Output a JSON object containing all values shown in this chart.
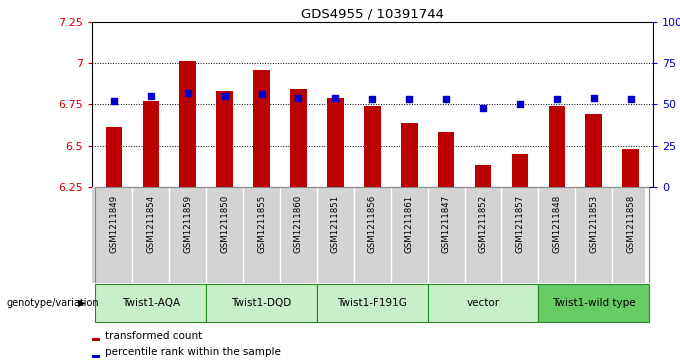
{
  "title": "GDS4955 / 10391744",
  "samples": [
    "GSM1211849",
    "GSM1211854",
    "GSM1211859",
    "GSM1211850",
    "GSM1211855",
    "GSM1211860",
    "GSM1211851",
    "GSM1211856",
    "GSM1211861",
    "GSM1211847",
    "GSM1211852",
    "GSM1211857",
    "GSM1211848",
    "GSM1211853",
    "GSM1211858"
  ],
  "transformed_count": [
    6.61,
    6.77,
    7.01,
    6.83,
    6.96,
    6.84,
    6.79,
    6.74,
    6.64,
    6.58,
    6.38,
    6.45,
    6.74,
    6.69,
    6.48
  ],
  "percentile_rank": [
    52,
    55,
    57,
    55,
    56,
    54,
    54,
    53,
    53,
    53,
    48,
    50,
    53,
    54,
    53
  ],
  "groups": [
    {
      "label": "Twist1-AQA",
      "start": 0,
      "end": 2,
      "color": "#c8f0c8"
    },
    {
      "label": "Twist1-DQD",
      "start": 3,
      "end": 5,
      "color": "#c8f0c8"
    },
    {
      "label": "Twist1-F191G",
      "start": 6,
      "end": 8,
      "color": "#c8f0c8"
    },
    {
      "label": "vector",
      "start": 9,
      "end": 11,
      "color": "#c8f0c8"
    },
    {
      "label": "Twist1-wild type",
      "start": 12,
      "end": 14,
      "color": "#66cc66"
    }
  ],
  "ylim_left": [
    6.25,
    7.25
  ],
  "ylim_right": [
    0,
    100
  ],
  "yticks_left": [
    6.25,
    6.5,
    6.75,
    7.0,
    7.25
  ],
  "yticks_left_labels": [
    "6.25",
    "6.5",
    "6.75",
    "7",
    "7.25"
  ],
  "yticks_right": [
    0,
    25,
    50,
    75,
    100
  ],
  "yticks_right_labels": [
    "0",
    "25",
    "50",
    "75",
    "100%"
  ],
  "bar_color": "#bb0000",
  "dot_color": "#0000cc",
  "grid_dotted_values": [
    6.5,
    6.75,
    7.0
  ],
  "bar_width": 0.45,
  "legend_items": [
    {
      "label": "transformed count",
      "color": "#bb0000"
    },
    {
      "label": "percentile rank within the sample",
      "color": "#0000cc"
    }
  ],
  "genotype_label": "genotype/variation",
  "sample_area_color": "#d3d3d3",
  "group_border_color": "#228B22"
}
